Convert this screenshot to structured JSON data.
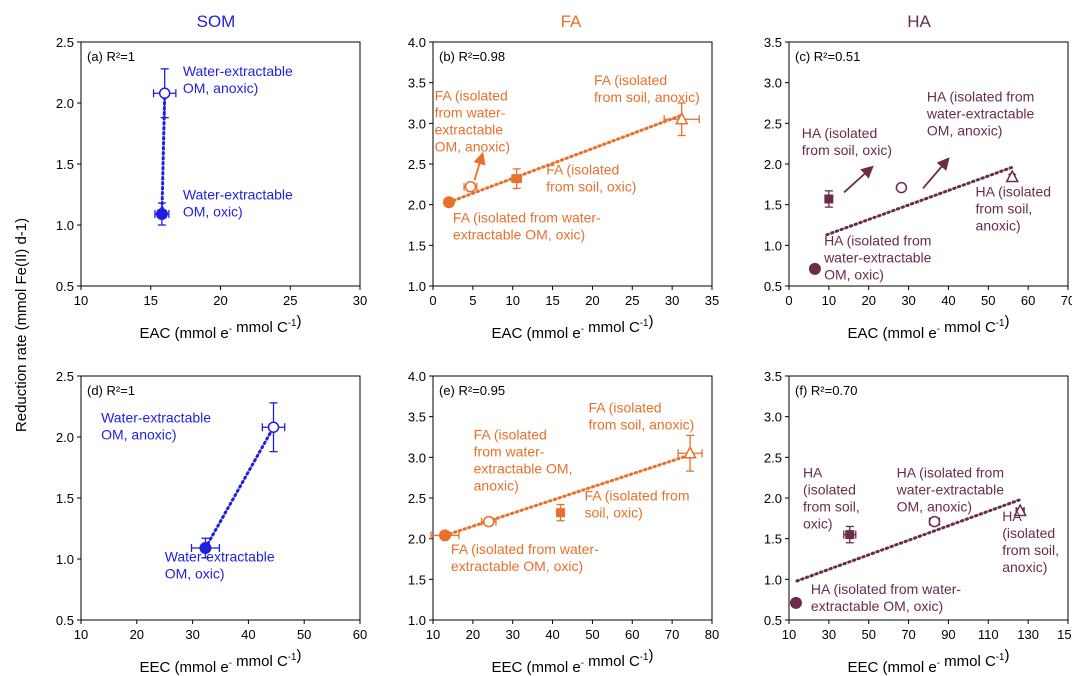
{
  "figure": {
    "ylabel": "Reduction rate (mmol Fe(II) d-1)",
    "column_titles": [
      {
        "text": "SOM",
        "color": "#1f1fe0"
      },
      {
        "text": "FA",
        "color": "#e8702a"
      },
      {
        "text": "HA",
        "color": "#6b2c4a"
      }
    ]
  },
  "chart_data": [
    {
      "type": "scatter",
      "panel": "(a)",
      "r2": "R²=1",
      "color": "#1f1fe0",
      "xlabel": "EAC (mmol e- mmol C-1)",
      "xlim": [
        10,
        30
      ],
      "xticks": [
        10,
        15,
        20,
        25,
        30
      ],
      "ylim": [
        0.5,
        2.5
      ],
      "yticks": [
        "0.5",
        "1.0",
        "1.5",
        "2.0",
        "2.5"
      ],
      "points": [
        {
          "x": 16.0,
          "y": 2.08,
          "xerr": 0.8,
          "yerr": 0.2,
          "marker": "circle-open"
        },
        {
          "x": 15.8,
          "y": 1.09,
          "xerr": 0.5,
          "yerr": 0.09,
          "marker": "circle-filled"
        }
      ],
      "trend": [
        [
          15.8,
          1.09
        ],
        [
          16.0,
          2.08
        ]
      ],
      "annotations": [
        {
          "lines": [
            "Water-extractable",
            "OM, anoxic)"
          ],
          "at": [
            17.3,
            2.22
          ]
        },
        {
          "lines": [
            "Water-extractable",
            "OM, oxic)"
          ],
          "at": [
            17.3,
            1.21
          ]
        }
      ]
    },
    {
      "type": "scatter",
      "panel": "(b)",
      "r2": "R²=0.98",
      "color": "#e8702a",
      "xlabel": "EAC (mmol e- mmol C-1)",
      "xlim": [
        0,
        35
      ],
      "xticks": [
        0,
        5,
        10,
        15,
        20,
        25,
        30,
        35
      ],
      "ylim": [
        1.0,
        4.0
      ],
      "yticks": [
        "1.0",
        "1.5",
        "2.0",
        "2.5",
        "3.0",
        "3.5",
        "4.0"
      ],
      "points": [
        {
          "x": 2.0,
          "y": 2.03,
          "xerr": 0,
          "yerr": 0,
          "marker": "circle-filled"
        },
        {
          "x": 4.7,
          "y": 2.22,
          "xerr": 0.8,
          "yerr": 0.05,
          "marker": "circle-open"
        },
        {
          "x": 10.5,
          "y": 2.32,
          "xerr": 0.6,
          "yerr": 0.12,
          "marker": "square"
        },
        {
          "x": 31.2,
          "y": 3.05,
          "xerr": 2.2,
          "yerr": 0.2,
          "marker": "triangle-open"
        }
      ],
      "trend": [
        [
          2.0,
          2.03
        ],
        [
          31.2,
          3.1
        ]
      ],
      "annotations": [
        {
          "lines": [
            "FA (isolated",
            "from water-",
            "extractable",
            "OM, anoxic)"
          ],
          "at": [
            0.2,
            3.28
          ]
        },
        {
          "lines": [
            "FA (isolated",
            "from soil, anoxic)"
          ],
          "at": [
            20.2,
            3.47
          ]
        },
        {
          "lines": [
            "FA (isolated",
            "from soil, oxic)"
          ],
          "at": [
            14.2,
            2.37
          ]
        },
        {
          "lines": [
            "FA (isolated from water-",
            "extractable OM, oxic)"
          ],
          "at": [
            2.5,
            1.78
          ]
        }
      ],
      "arrows": [
        {
          "from": [
            5.2,
            2.3
          ],
          "to": [
            6.2,
            2.62
          ]
        }
      ]
    },
    {
      "type": "scatter",
      "panel": "(c)",
      "r2": "R²=0.51",
      "color": "#6b2c4a",
      "xlabel": "EAC (mmol e- mmol C-1)",
      "xlim": [
        0,
        70
      ],
      "xticks": [
        0,
        10,
        20,
        30,
        40,
        50,
        60,
        70
      ],
      "ylim": [
        0.5,
        3.5
      ],
      "yticks": [
        "0.5",
        "1.0",
        "1.5",
        "2.0",
        "2.5",
        "3.0",
        "3.5"
      ],
      "points": [
        {
          "x": 6.5,
          "y": 0.71,
          "xerr": 0,
          "yerr": 0,
          "marker": "circle-filled"
        },
        {
          "x": 10.0,
          "y": 1.57,
          "xerr": 0.5,
          "yerr": 0.1,
          "marker": "square"
        },
        {
          "x": 28.2,
          "y": 1.71,
          "xerr": 0.8,
          "yerr": 0.03,
          "marker": "circle-open"
        },
        {
          "x": 56.0,
          "y": 1.84,
          "xerr": 0.5,
          "yerr": 0.03,
          "marker": "triangle-open"
        }
      ],
      "trend": [
        [
          9.5,
          1.13
        ],
        [
          56.0,
          1.96
        ]
      ],
      "annotations": [
        {
          "lines": [
            "HA (isolated",
            "from soil, oxic)"
          ],
          "at": [
            3.2,
            2.32
          ]
        },
        {
          "lines": [
            "HA (isolated from",
            "water-extractable",
            "OM, anoxic)"
          ],
          "at": [
            34.6,
            2.77
          ]
        },
        {
          "lines": [
            "HA (isolated",
            "from soil,",
            "anoxic)"
          ],
          "at": [
            46.8,
            1.6
          ]
        },
        {
          "lines": [
            "HA (isolated from",
            "water-extractable",
            "OM, oxic)"
          ],
          "at": [
            8.8,
            1.0
          ]
        }
      ],
      "arrows": [
        {
          "from": [
            13.8,
            1.65
          ],
          "to": [
            20.8,
            1.96
          ]
        },
        {
          "from": [
            33.6,
            1.7
          ],
          "to": [
            39.9,
            2.06
          ]
        }
      ]
    },
    {
      "type": "scatter",
      "panel": "(d)",
      "r2": "R²=1",
      "color": "#1f1fe0",
      "xlabel": "EEC (mmol e- mmol C-1)",
      "xlim": [
        10,
        60
      ],
      "xticks": [
        10,
        20,
        30,
        40,
        50,
        60
      ],
      "ylim": [
        0.5,
        2.5
      ],
      "yticks": [
        "0.5",
        "1.0",
        "1.5",
        "2.0",
        "2.5"
      ],
      "points": [
        {
          "x": 44.5,
          "y": 2.08,
          "xerr": 2.0,
          "yerr": 0.2,
          "marker": "circle-open"
        },
        {
          "x": 32.3,
          "y": 1.09,
          "xerr": 2.5,
          "yerr": 0.08,
          "marker": "circle-filled"
        }
      ],
      "trend": [
        [
          32.3,
          1.09
        ],
        [
          44.5,
          2.08
        ]
      ],
      "annotations": [
        {
          "lines": [
            "Water-extractable",
            "OM, anoxic)"
          ],
          "at": [
            13.6,
            2.12
          ]
        },
        {
          "lines": [
            "Water-extractable",
            "OM, oxic)"
          ],
          "at": [
            25.0,
            0.98
          ]
        }
      ]
    },
    {
      "type": "scatter",
      "panel": "(e)",
      "r2": "R²=0.95",
      "color": "#e8702a",
      "xlabel": "EEC (mmol e- mmol C-1)",
      "xlim": [
        10,
        80
      ],
      "xticks": [
        10,
        20,
        30,
        40,
        50,
        60,
        70,
        80
      ],
      "ylim": [
        1.0,
        4.0
      ],
      "yticks": [
        "1.0",
        "1.5",
        "2.0",
        "2.5",
        "3.0",
        "3.5",
        "4.0"
      ],
      "points": [
        {
          "x": 13.0,
          "y": 2.04,
          "xerr": 3.5,
          "yerr": 0,
          "marker": "circle-filled"
        },
        {
          "x": 24.0,
          "y": 2.21,
          "xerr": 1.8,
          "yerr": 0.05,
          "marker": "circle-open"
        },
        {
          "x": 42.0,
          "y": 2.32,
          "xerr": 0.5,
          "yerr": 0.1,
          "marker": "square"
        },
        {
          "x": 74.5,
          "y": 3.05,
          "xerr": 3.0,
          "yerr": 0.22,
          "marker": "triangle-open"
        }
      ],
      "trend": [
        [
          13.0,
          2.04
        ],
        [
          74.5,
          3.03
        ]
      ],
      "annotations": [
        {
          "lines": [
            "FA (isolated",
            "from soil, anoxic)"
          ],
          "at": [
            49.0,
            3.55
          ]
        },
        {
          "lines": [
            "FA (isolated",
            "from water-",
            "extractable OM,",
            "anoxic)"
          ],
          "at": [
            20.2,
            3.22
          ]
        },
        {
          "lines": [
            "FA (isolated from",
            "soil, oxic)"
          ],
          "at": [
            48.0,
            2.47
          ]
        },
        {
          "lines": [
            "FA (isolated from water-",
            "extractable OM, oxic)"
          ],
          "at": [
            14.5,
            1.81
          ]
        }
      ]
    },
    {
      "type": "scatter",
      "panel": "(f)",
      "r2": "R²=0.70",
      "color": "#6b2c4a",
      "xlabel": "EEC (mmol e- mmol C-1)",
      "xlim": [
        10,
        150
      ],
      "xticks": [
        10,
        30,
        50,
        70,
        90,
        110,
        130,
        150
      ],
      "ylim": [
        0.5,
        3.5
      ],
      "yticks": [
        "0.5",
        "1.0",
        "1.5",
        "2.0",
        "2.5",
        "3.0",
        "3.5"
      ],
      "points": [
        {
          "x": 13.5,
          "y": 0.71,
          "xerr": 0,
          "yerr": 0,
          "marker": "circle-filled"
        },
        {
          "x": 40.5,
          "y": 1.55,
          "xerr": 3.0,
          "yerr": 0.1,
          "marker": "square"
        },
        {
          "x": 83.0,
          "y": 1.71,
          "xerr": 2.5,
          "yerr": 0.03,
          "marker": "circle-open"
        },
        {
          "x": 126.0,
          "y": 1.84,
          "xerr": 2.0,
          "yerr": 0.03,
          "marker": "triangle-open"
        }
      ],
      "trend": [
        [
          14.0,
          0.98
        ],
        [
          126.0,
          1.98
        ]
      ],
      "annotations": [
        {
          "lines": [
            "HA",
            "(isolated",
            "from soil,",
            "oxic)"
          ],
          "at": [
            17.0,
            2.25
          ]
        },
        {
          "lines": [
            "HA (isolated from",
            "water-extractable",
            "OM, anoxic)"
          ],
          "at": [
            64.0,
            2.25
          ]
        },
        {
          "lines": [
            "HA",
            "(isolated",
            "from soil,",
            "anoxic)"
          ],
          "at": [
            117.0,
            1.72
          ]
        },
        {
          "lines": [
            "HA (isolated from water-",
            "extractable OM, oxic)"
          ],
          "at": [
            21.0,
            0.82
          ]
        }
      ]
    }
  ]
}
